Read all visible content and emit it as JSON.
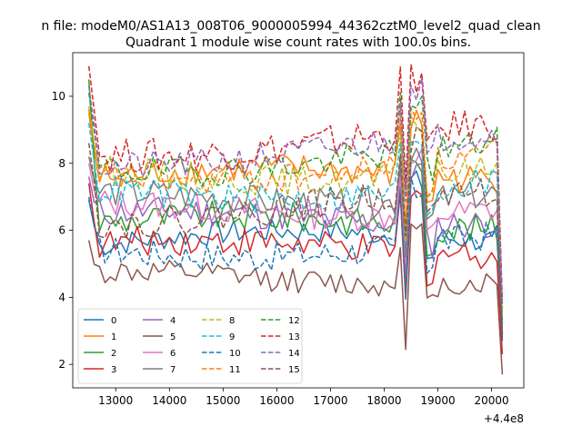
{
  "chart_data": {
    "type": "line",
    "suptitle": "n file: modeM0/AS1A13_008T06_9000005994_44362cztM0_level2_quad_clean",
    "title": "Quadrant 1 module wise count rates with 100.0s bins.",
    "xlabel": "",
    "ylabel": "",
    "x_offset_label": "+4.4e8",
    "xlim": [
      12200,
      20600
    ],
    "ylim": [
      1.3,
      11.3
    ],
    "xticks": [
      13000,
      14000,
      15000,
      16000,
      17000,
      18000,
      19000,
      20000
    ],
    "yticks": [
      2,
      4,
      6,
      8,
      10
    ],
    "xtick_labels": [
      "13000",
      "14000",
      "15000",
      "16000",
      "17000",
      "18000",
      "19000",
      "20000"
    ],
    "ytick_labels": [
      "2",
      "4",
      "6",
      "8",
      "10"
    ],
    "x_start": 12500,
    "x_step": 100,
    "n_points": 78,
    "grid": false,
    "legend": {
      "placement": "lower-left",
      "columns": 4
    },
    "series": [
      {
        "name": "0",
        "color": "#1f77b4",
        "dash": "solid",
        "base": 5.5,
        "start": 6.9,
        "amp": 0.25,
        "end": 2.7
      },
      {
        "name": "1",
        "color": "#ff7f0e",
        "dash": "solid",
        "base": 7.4,
        "start": 9.5,
        "amp": 0.3,
        "end": 3.2
      },
      {
        "name": "2",
        "color": "#2ca02c",
        "dash": "solid",
        "base": 6.0,
        "start": 10.5,
        "amp": 0.3,
        "end": 3.0
      },
      {
        "name": "3",
        "color": "#d62728",
        "dash": "solid",
        "base": 5.3,
        "start": 7.4,
        "amp": 0.3,
        "end": 2.3
      },
      {
        "name": "4",
        "color": "#9467bd",
        "dash": "solid",
        "base": 6.2,
        "start": 7.6,
        "amp": 0.3,
        "end": 2.9
      },
      {
        "name": "5",
        "color": "#8c564b",
        "dash": "solid",
        "base": 4.4,
        "start": 5.7,
        "amp": 0.25,
        "end": 1.7
      },
      {
        "name": "6",
        "color": "#e377c2",
        "dash": "solid",
        "base": 6.5,
        "start": 8.0,
        "amp": 0.3,
        "end": 3.1
      },
      {
        "name": "7",
        "color": "#7f7f7f",
        "dash": "solid",
        "base": 6.9,
        "start": 8.2,
        "amp": 0.3,
        "end": 3.3
      },
      {
        "name": "8",
        "color": "#bcbd22",
        "dash": "dashed",
        "base": 7.6,
        "start": 9.7,
        "amp": 0.3,
        "end": 3.4
      },
      {
        "name": "9",
        "color": "#17becf",
        "dash": "dashed",
        "base": 7.1,
        "start": 9.2,
        "amp": 0.3,
        "end": 3.2
      },
      {
        "name": "10",
        "color": "#1f77b4",
        "dash": "dashed",
        "base": 5.4,
        "start": 7.0,
        "amp": 0.3,
        "end": 2.8
      },
      {
        "name": "11",
        "color": "#ff7f0e",
        "dash": "dashed",
        "base": 7.7,
        "start": 9.6,
        "amp": 0.3,
        "end": 3.5
      },
      {
        "name": "12",
        "color": "#2ca02c",
        "dash": "dashed",
        "base": 8.0,
        "start": 10.1,
        "amp": 0.3,
        "end": 3.7
      },
      {
        "name": "13",
        "color": "#d62728",
        "dash": "dashed",
        "base": 8.5,
        "start": 10.9,
        "amp": 0.35,
        "end": 3.9
      },
      {
        "name": "14",
        "color": "#9467bd",
        "dash": "dashed",
        "base": 8.2,
        "start": 10.3,
        "amp": 0.3,
        "end": 3.8
      },
      {
        "name": "15",
        "color": "#8c564b",
        "dash": "dashed",
        "base": 6.5,
        "start": 8.6,
        "amp": 0.3,
        "end": 2.9
      }
    ]
  }
}
